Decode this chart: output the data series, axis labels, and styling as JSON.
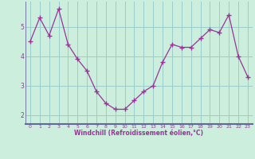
{
  "x": [
    0,
    1,
    2,
    3,
    4,
    5,
    6,
    7,
    8,
    9,
    10,
    11,
    12,
    13,
    14,
    15,
    16,
    17,
    18,
    19,
    20,
    21,
    22,
    23
  ],
  "y": [
    4.5,
    5.3,
    4.7,
    5.6,
    4.4,
    3.9,
    3.5,
    2.8,
    2.4,
    2.2,
    2.2,
    2.5,
    2.8,
    3.0,
    3.8,
    4.4,
    4.3,
    4.3,
    4.6,
    4.9,
    4.8,
    5.4,
    4.0,
    3.3
  ],
  "line_color": "#993399",
  "marker": "+",
  "bg_color": "#cceedd",
  "plot_bg": "#cceedd",
  "grid_color": "#99cccc",
  "xlabel": "Windchill (Refroidissement éolien,°C)",
  "xlabel_color": "#993399",
  "tick_color": "#993399",
  "ylim": [
    1.7,
    5.85
  ],
  "xlim": [
    -0.5,
    23.5
  ],
  "yticks": [
    2,
    3,
    4,
    5
  ],
  "xticks": [
    0,
    1,
    2,
    3,
    4,
    5,
    6,
    7,
    8,
    9,
    10,
    11,
    12,
    13,
    14,
    15,
    16,
    17,
    18,
    19,
    20,
    21,
    22,
    23
  ],
  "spine_color": "#666699",
  "axis_bar_color": "#666699"
}
